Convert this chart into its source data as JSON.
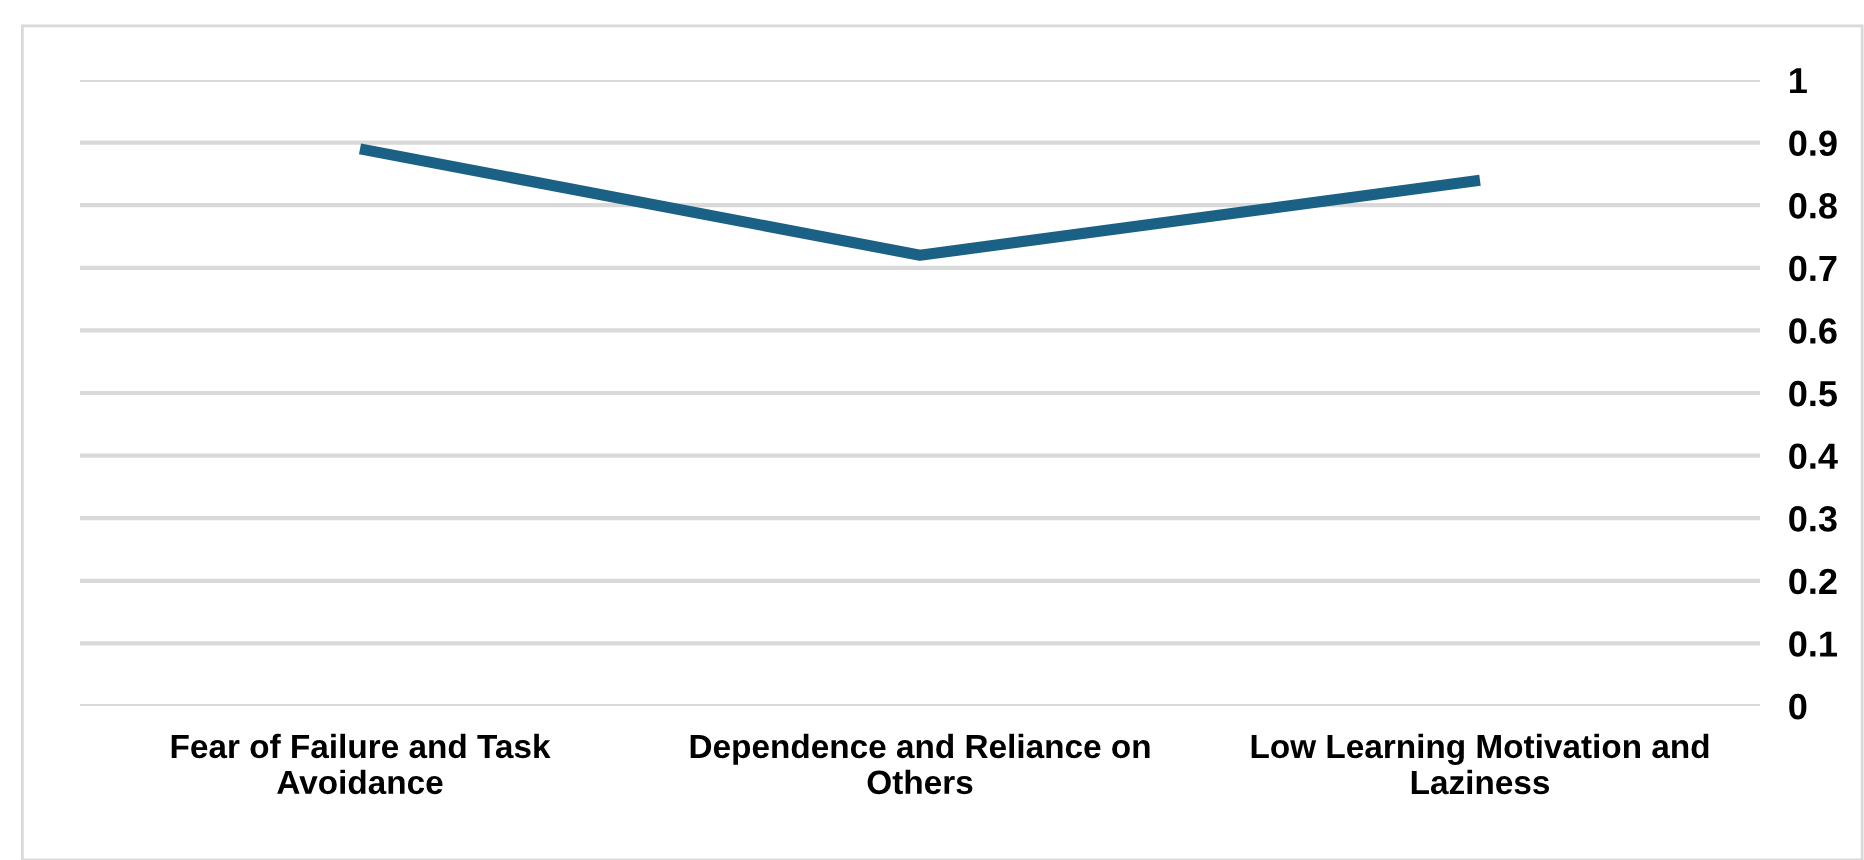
{
  "chart_data": {
    "type": "line",
    "categories": [
      "Fear of Failure and Task Avoidance",
      "Dependence and Reliance on Others",
      "Low Learning Motivation and Laziness"
    ],
    "series": [
      {
        "color": "#1b6185",
        "values": [
          0.89,
          0.72,
          0.84
        ]
      }
    ],
    "ylim": [
      0,
      1
    ],
    "yticks": [
      0,
      0.1,
      0.2,
      0.3,
      0.4,
      0.5,
      0.6,
      0.7,
      0.8,
      0.9,
      1
    ],
    "grid": "y",
    "marker": "none",
    "line_style": "solid"
  }
}
